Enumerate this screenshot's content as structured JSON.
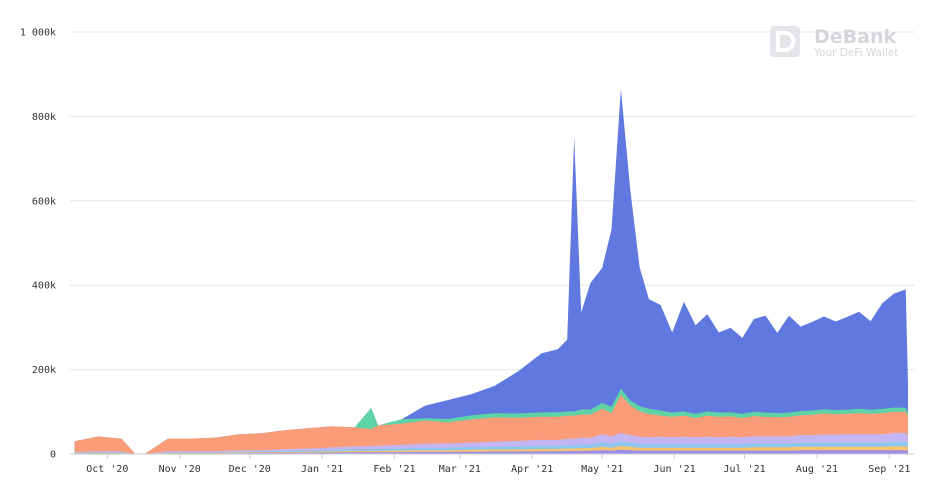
{
  "watermark": {
    "brand": "DeBank",
    "tagline": "Your DeFi Wallet"
  },
  "chart_data": {
    "type": "area",
    "stacked": true,
    "title": "",
    "xlabel": "",
    "ylabel": "",
    "ylim": [
      0,
      1000000
    ],
    "y_ticks": [
      0,
      200000,
      400000,
      600000,
      800000,
      1000000
    ],
    "y_tick_labels": [
      "0",
      "200k",
      "400k",
      "600k",
      "800k",
      "1 000k"
    ],
    "x_tick_labels": [
      "Oct '20",
      "Nov '20",
      "Dec '20",
      "Jan '21",
      "Feb '21",
      "Mar '21",
      "Apr '21",
      "May '21",
      "Jun '21",
      "Jul '21",
      "Aug '21",
      "Sep '21"
    ],
    "grid": true,
    "legend": "none",
    "x": [
      "2020-09-17",
      "2020-09-27",
      "2020-10-07",
      "2020-10-13",
      "2020-10-17",
      "2020-10-27",
      "2020-11-06",
      "2020-11-16",
      "2020-11-26",
      "2020-12-06",
      "2020-12-16",
      "2020-12-26",
      "2021-01-05",
      "2021-01-15",
      "2021-01-22",
      "2021-01-25",
      "2021-02-04",
      "2021-02-14",
      "2021-02-24",
      "2021-03-06",
      "2021-03-16",
      "2021-03-26",
      "2021-04-05",
      "2021-04-12",
      "2021-04-16",
      "2021-04-19",
      "2021-04-22",
      "2021-04-26",
      "2021-05-01",
      "2021-05-05",
      "2021-05-09",
      "2021-05-13",
      "2021-05-17",
      "2021-05-21",
      "2021-05-26",
      "2021-05-31",
      "2021-06-05",
      "2021-06-10",
      "2021-06-15",
      "2021-06-20",
      "2021-06-25",
      "2021-06-30",
      "2021-07-05",
      "2021-07-10",
      "2021-07-15",
      "2021-07-20",
      "2021-07-25",
      "2021-07-30",
      "2021-08-04",
      "2021-08-09",
      "2021-08-14",
      "2021-08-19",
      "2021-08-24",
      "2021-08-29",
      "2021-09-03",
      "2021-09-08",
      "2021-09-09"
    ],
    "series": [
      {
        "color": "#6079e0",
        "values": [
          0,
          0,
          0,
          0,
          0,
          0,
          0,
          0,
          0,
          0,
          0,
          0,
          0,
          0,
          0,
          0,
          0,
          30000,
          45000,
          50000,
          65000,
          100000,
          140000,
          150000,
          170000,
          650000,
          230000,
          300000,
          320000,
          420000,
          710000,
          500000,
          330000,
          260000,
          250000,
          190000,
          260000,
          210000,
          230000,
          190000,
          200000,
          180000,
          220000,
          230000,
          190000,
          230000,
          200000,
          210000,
          220000,
          210000,
          220000,
          230000,
          210000,
          250000,
          270000,
          280000,
          70000
        ]
      },
      {
        "color": "#5ed3a6",
        "values": [
          0,
          0,
          0,
          0,
          0,
          0,
          0,
          0,
          0,
          0,
          0,
          0,
          0,
          0,
          50000,
          0,
          10000,
          5000,
          8000,
          10000,
          10000,
          10000,
          10000,
          10000,
          10000,
          10000,
          12000,
          12000,
          14000,
          15000,
          15000,
          12000,
          12000,
          12000,
          12000,
          10000,
          10000,
          10000,
          10000,
          10000,
          10000,
          10000,
          10000,
          10000,
          10000,
          10000,
          10000,
          10000,
          10000,
          10000,
          10000,
          10000,
          10000,
          10000,
          10000,
          10000,
          10000
        ]
      },
      {
        "color": "#fb9c78",
        "values": [
          25000,
          35000,
          30000,
          0,
          0,
          30000,
          30000,
          32000,
          38000,
          40000,
          45000,
          48000,
          50000,
          45000,
          40000,
          48000,
          50000,
          55000,
          50000,
          55000,
          57000,
          55000,
          55000,
          55000,
          55000,
          55000,
          55000,
          55000,
          60000,
          55000,
          90000,
          70000,
          60000,
          55000,
          50000,
          48000,
          50000,
          45000,
          50000,
          48000,
          48000,
          45000,
          48000,
          46000,
          45000,
          46000,
          47000,
          48000,
          50000,
          48000,
          48000,
          50000,
          48000,
          50000,
          50000,
          50000,
          45000
        ]
      },
      {
        "color": "#c3b6f2",
        "values": [
          1000,
          2000,
          2000,
          0,
          0,
          2000,
          2000,
          2000,
          3000,
          3000,
          4000,
          5000,
          6000,
          7000,
          8000,
          8000,
          9000,
          10000,
          10000,
          11000,
          12000,
          13000,
          14000,
          14000,
          15000,
          15000,
          16000,
          16000,
          20000,
          18000,
          20000,
          18000,
          17000,
          16000,
          17000,
          16000,
          17000,
          16000,
          17000,
          16000,
          17000,
          16000,
          17000,
          17000,
          17000,
          17000,
          18000,
          18000,
          19000,
          19000,
          20000,
          20000,
          20000,
          20000,
          21000,
          21000,
          18000
        ]
      },
      {
        "color": "#8ec7f0",
        "values": [
          1000,
          1500,
          1500,
          0,
          0,
          1500,
          1500,
          1500,
          2000,
          2000,
          2500,
          3000,
          3500,
          4000,
          4000,
          4500,
          5000,
          5500,
          6000,
          6000,
          6500,
          7000,
          7500,
          7500,
          8000,
          8000,
          8500,
          8500,
          10000,
          9000,
          11000,
          10000,
          9000,
          9000,
          9000,
          9000,
          9000,
          9000,
          9000,
          9000,
          9000,
          9000,
          9000,
          9000,
          9000,
          9000,
          10000,
          10000,
          10000,
          10000,
          10000,
          10000,
          10000,
          10000,
          11000,
          11000,
          10000
        ]
      },
      {
        "color": "#f5c46b",
        "values": [
          1000,
          1000,
          1000,
          0,
          0,
          1000,
          1000,
          1000,
          1500,
          1500,
          2000,
          2000,
          2500,
          3000,
          3000,
          3000,
          3500,
          4000,
          4000,
          4500,
          5000,
          5000,
          5500,
          5500,
          6000,
          6000,
          6500,
          6500,
          8000,
          7000,
          9000,
          8000,
          7000,
          7000,
          7000,
          7000,
          7000,
          7000,
          7000,
          7000,
          7000,
          7000,
          8000,
          8000,
          8000,
          8000,
          8000,
          8000,
          8000,
          8000,
          8000,
          8000,
          8000,
          8000,
          9000,
          9000,
          8000
        ]
      },
      {
        "color": "#9b8de8",
        "values": [
          2000,
          2000,
          2000,
          0,
          0,
          2000,
          2000,
          2000,
          2000,
          2500,
          3000,
          3000,
          3500,
          4000,
          4000,
          4000,
          4500,
          5000,
          5000,
          5500,
          6000,
          6000,
          6500,
          6500,
          7000,
          7000,
          7500,
          7500,
          9000,
          8000,
          10000,
          9000,
          8000,
          8000,
          8000,
          8000,
          8000,
          8000,
          8000,
          8000,
          8000,
          8000,
          8000,
          8000,
          8000,
          8000,
          9000,
          9000,
          9000,
          9000,
          9000,
          9000,
          9000,
          9000,
          9000,
          9000,
          8000
        ]
      }
    ]
  }
}
